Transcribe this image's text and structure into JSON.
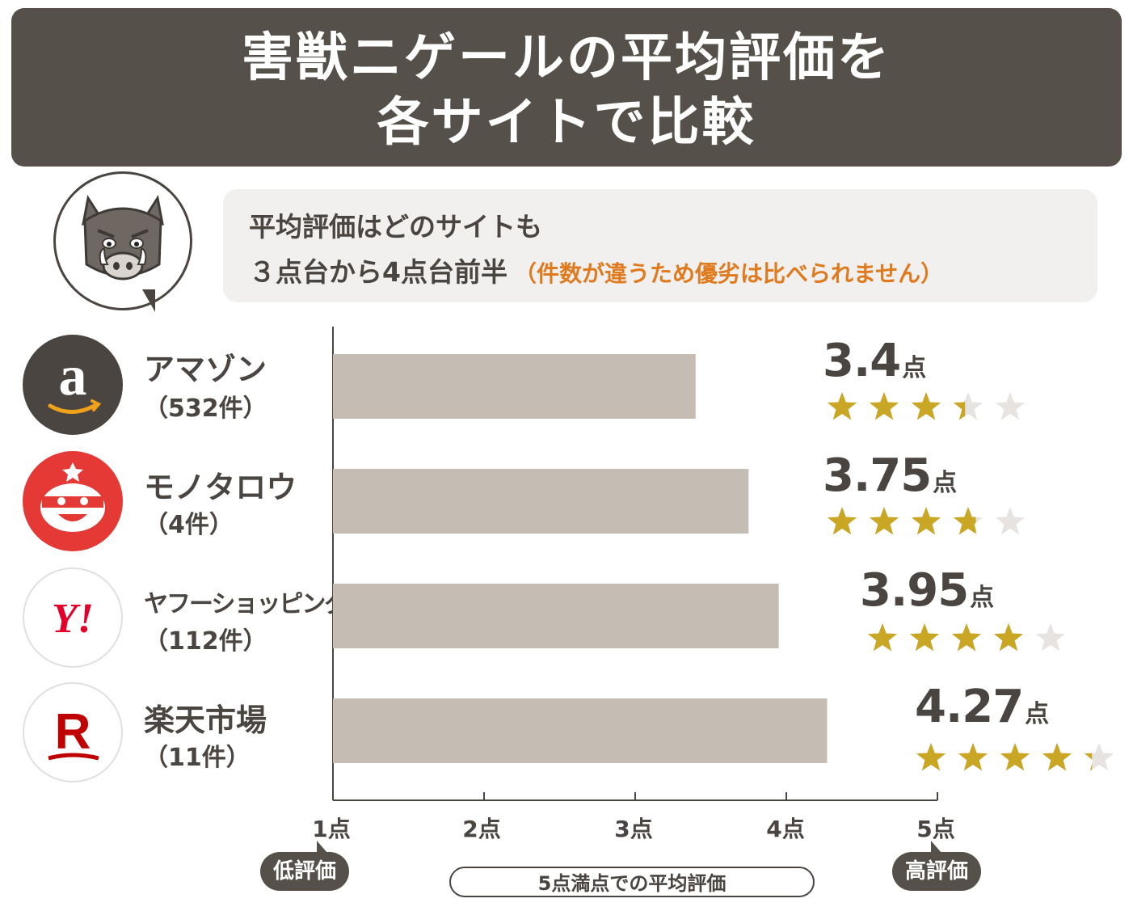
{
  "header": {
    "title_line1": "害獣ニゲールの平均評価を",
    "title_line2": "各サイトで比較"
  },
  "note": {
    "line1": "平均評価はどのサイトも",
    "line2": "３点台から4点台前半",
    "accent": "（件数が違うため優劣は比べられません）"
  },
  "mascot": {
    "icon": "boar-face-icon"
  },
  "colors": {
    "title_bg": "#555049",
    "bar": "#c5bcb3",
    "star_on": "#c9a623",
    "star_off": "#e6e3e0",
    "accent": "#e07a1f",
    "amazon_bg": "#4a4541",
    "monotaro_bg": "#e53935",
    "yahoo_red": "#e3002b",
    "rakuten_red": "#bf0000"
  },
  "sites": [
    {
      "name": "アマゾン",
      "count": "（532件）",
      "score_text": "3.4",
      "unit": "点",
      "logo": "amazon-logo-icon"
    },
    {
      "name": "モノタロウ",
      "count": "（4件）",
      "score_text": "3.75",
      "unit": "点",
      "logo": "monotaro-logo-icon"
    },
    {
      "name": "ヤフーショッピング",
      "count": "（112件）",
      "score_text": "3.95",
      "unit": "点",
      "logo": "yahoo-logo-icon"
    },
    {
      "name": "楽天市場",
      "count": "（11件）",
      "score_text": "4.27",
      "unit": "点",
      "logo": "rakuten-logo-icon"
    }
  ],
  "axis": {
    "ticks": [
      "1点",
      "2点",
      "3点",
      "4点",
      "5点"
    ],
    "low_label": "低評価",
    "high_label": "高評価",
    "caption": "5点満点での平均評価"
  },
  "chart_data": {
    "type": "bar",
    "orientation": "horizontal",
    "categories": [
      "アマゾン",
      "モノタロウ",
      "ヤフーショッピング",
      "楽天市場"
    ],
    "values": [
      3.4,
      3.75,
      3.95,
      4.27
    ],
    "xlim": [
      1,
      5
    ],
    "x_tick_labels": [
      "1点",
      "2点",
      "3点",
      "4点",
      "5点"
    ],
    "xlabel": "5点満点での平均評価",
    "title": "",
    "grid": false
  }
}
